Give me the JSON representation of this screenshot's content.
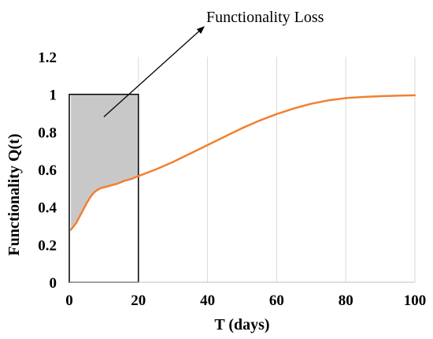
{
  "chart_data": {
    "type": "line",
    "title": "",
    "xlabel": "T (days)",
    "ylabel": "Functionality Q(t)",
    "xlim": [
      0,
      100
    ],
    "ylim": [
      0,
      1.2
    ],
    "x_ticks": [
      0,
      20,
      40,
      60,
      80,
      100
    ],
    "x_tick_labels": [
      "0",
      "20",
      "40",
      "60",
      "80",
      "100"
    ],
    "y_ticks": [
      0,
      0.2,
      0.4,
      0.6,
      0.8,
      1,
      1.2
    ],
    "y_tick_labels": [
      "0",
      "0.2",
      "0.4",
      "0.6",
      "0.8",
      "1",
      "1.2"
    ],
    "grid": {
      "vertical": true,
      "horizontal": false,
      "color": "#d9d9d9"
    },
    "series": [
      {
        "color": "#f28030",
        "x": [
          0.5,
          2,
          3,
          4,
          5,
          6,
          7,
          8,
          9,
          10,
          12,
          14,
          16,
          18,
          20,
          25,
          30,
          35,
          40,
          45,
          50,
          55,
          60,
          65,
          70,
          75,
          80,
          85,
          90,
          95,
          100
        ],
        "y": [
          0.28,
          0.315,
          0.35,
          0.385,
          0.42,
          0.45,
          0.475,
          0.49,
          0.5,
          0.505,
          0.515,
          0.525,
          0.54,
          0.55,
          0.565,
          0.6,
          0.64,
          0.685,
          0.73,
          0.775,
          0.82,
          0.86,
          0.895,
          0.925,
          0.95,
          0.968,
          0.98,
          0.986,
          0.99,
          0.993,
          0.995
        ]
      }
    ],
    "box": {
      "x0": 0,
      "x1": 20,
      "y0": 0,
      "y1": 1,
      "edge_color": "#000000"
    },
    "shaded_region": {
      "fill": "#c8c8c8",
      "between": "curve-and-1",
      "x0": 0.5,
      "x1": 20
    },
    "annotation": {
      "text": "Functionality Loss",
      "arrow_from": [
        10,
        0.88
      ],
      "arrow_to": [
        39,
        1.36
      ]
    }
  }
}
